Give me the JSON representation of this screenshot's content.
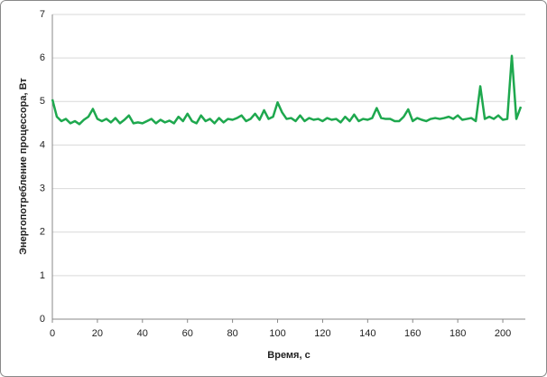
{
  "chart_data": {
    "type": "line",
    "x_label": "Время, с",
    "y_label": "Энергопотребление процессора, Вт",
    "x": [
      0,
      2,
      4,
      6,
      8,
      10,
      12,
      14,
      16,
      18,
      20,
      22,
      24,
      26,
      28,
      30,
      32,
      34,
      36,
      38,
      40,
      42,
      44,
      46,
      48,
      50,
      52,
      54,
      56,
      58,
      60,
      62,
      64,
      66,
      68,
      70,
      72,
      74,
      76,
      78,
      80,
      82,
      84,
      86,
      88,
      90,
      92,
      94,
      96,
      98,
      100,
      102,
      104,
      106,
      108,
      110,
      112,
      114,
      116,
      118,
      120,
      122,
      124,
      126,
      128,
      130,
      132,
      134,
      136,
      138,
      140,
      142,
      144,
      146,
      148,
      150,
      152,
      154,
      156,
      158,
      160,
      162,
      164,
      166,
      168,
      170,
      172,
      174,
      176,
      178,
      180,
      182,
      184,
      186,
      188,
      190,
      192,
      194,
      196,
      198,
      200,
      202,
      204,
      206,
      208
    ],
    "series": [
      {
        "color": "#1ea84e",
        "values": [
          5.05,
          4.65,
          4.55,
          4.6,
          4.5,
          4.55,
          4.48,
          4.58,
          4.65,
          4.83,
          4.6,
          4.55,
          4.6,
          4.52,
          4.62,
          4.5,
          4.58,
          4.68,
          4.5,
          4.52,
          4.5,
          4.55,
          4.6,
          4.5,
          4.58,
          4.52,
          4.56,
          4.5,
          4.65,
          4.55,
          4.72,
          4.55,
          4.5,
          4.68,
          4.55,
          4.6,
          4.5,
          4.62,
          4.52,
          4.6,
          4.58,
          4.62,
          4.68,
          4.55,
          4.6,
          4.72,
          4.58,
          4.8,
          4.6,
          4.65,
          4.98,
          4.75,
          4.6,
          4.62,
          4.55,
          4.68,
          4.55,
          4.62,
          4.58,
          4.6,
          4.55,
          4.62,
          4.58,
          4.6,
          4.52,
          4.65,
          4.55,
          4.7,
          4.55,
          4.6,
          4.58,
          4.62,
          4.85,
          4.62,
          4.6,
          4.6,
          4.55,
          4.55,
          4.65,
          4.82,
          4.55,
          4.62,
          4.58,
          4.55,
          4.6,
          4.62,
          4.6,
          4.62,
          4.65,
          4.6,
          4.68,
          4.58,
          4.6,
          4.62,
          4.55,
          5.35,
          4.6,
          4.65,
          4.6,
          4.68,
          4.58,
          4.6,
          6.05,
          4.6,
          4.88
        ]
      }
    ],
    "xlim": [
      0,
      210
    ],
    "xticks": [
      0,
      20,
      40,
      60,
      80,
      100,
      120,
      140,
      160,
      180,
      200
    ],
    "ylim": [
      0,
      7
    ],
    "yticks": [
      0,
      1,
      2,
      3,
      4,
      5,
      6,
      7
    ],
    "grid": true
  }
}
